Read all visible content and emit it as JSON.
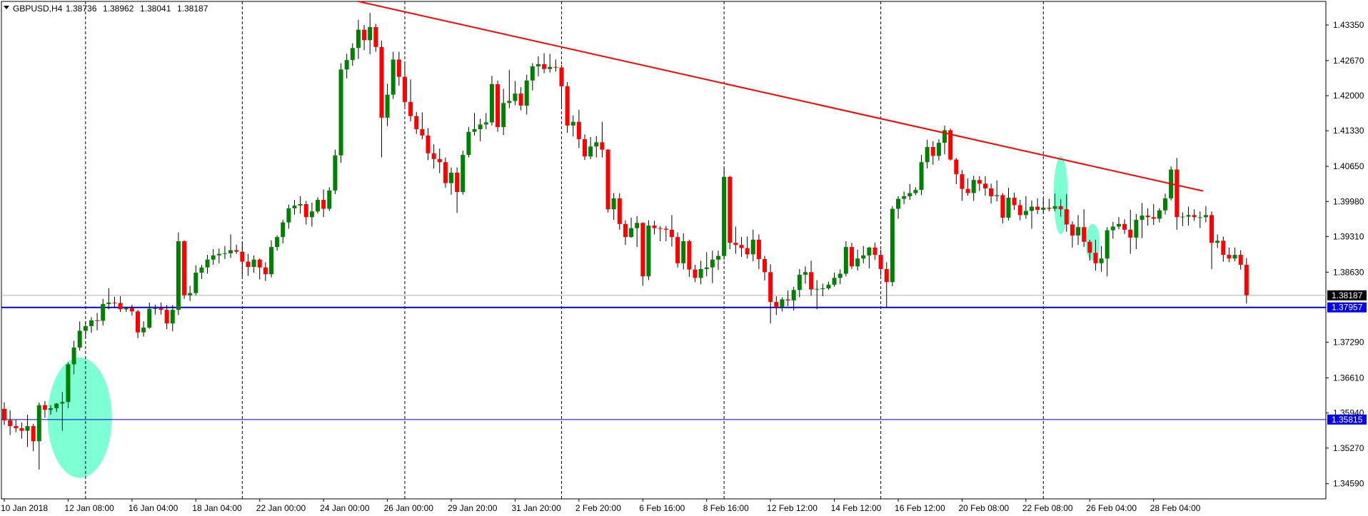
{
  "header": {
    "symbol": "GBPUSD,H4",
    "open": "1.38736",
    "high": "1.38962",
    "low": "1.38041",
    "close": "1.38187"
  },
  "colors": {
    "bull": "#008000",
    "bear": "#ff0000",
    "wick": "#000000",
    "support": "#0000cc",
    "trendline": "#ff0000",
    "highlight": "#7fffd4",
    "vgrid": "#000000",
    "current_bg": "#000000",
    "level_bg": "#0000ff"
  },
  "chart_data": {
    "type": "candlestick",
    "symbol": "GBPUSD",
    "timeframe": "H4",
    "y_range": [
      1.343,
      1.438
    ],
    "y_ticks": [
      "1.43350",
      "1.42670",
      "1.42000",
      "1.41330",
      "1.40650",
      "1.39980",
      "1.39310",
      "1.38630",
      "1.37290",
      "1.36610",
      "1.35940",
      "1.35270",
      "1.34590"
    ],
    "x_labels": [
      "10 Jan 2018",
      "12 Jan 08:00",
      "16 Jan 04:00",
      "18 Jan 04:00",
      "22 Jan 00:00",
      "24 Jan 00:00",
      "26 Jan 00:00",
      "29 Jan 20:00",
      "31 Jan 20:00",
      "2 Feb 20:00",
      "6 Feb 16:00",
      "8 Feb 16:00",
      "12 Feb 12:00",
      "14 Feb 12:00",
      "16 Feb 12:00",
      "20 Feb 08:00",
      "22 Feb 08:00",
      "26 Feb 04:00",
      "28 Feb 04:00"
    ],
    "x_label_bars": [
      0,
      11,
      22,
      33,
      44,
      55,
      66,
      77,
      88,
      99,
      110,
      121,
      132,
      143,
      154,
      165,
      176,
      187,
      198
    ],
    "separator_bars": [
      14,
      41,
      69,
      96,
      124,
      151,
      179
    ],
    "current_price": "1.38187",
    "current_price_value": 1.38187,
    "support_levels": [
      {
        "label": "1.37957",
        "value": 1.37957,
        "style": "thick"
      },
      {
        "label": "1.35815",
        "value": 1.35815,
        "style": "thin"
      }
    ],
    "trendline": {
      "from_bar": 61,
      "from_price": 1.438,
      "to_bar": 206.5,
      "to_price": 1.4018
    },
    "highlights": [
      {
        "bar": 13,
        "price_low": 1.347,
        "price_high": 1.37
      },
      {
        "bar": 182,
        "price_low": 1.3935,
        "price_high": 1.4085
      },
      {
        "bar": 187.5,
        "price_low": 1.3885,
        "price_high": 1.3955
      }
    ],
    "ohlc": [
      [
        1.3602,
        1.3614,
        1.3571,
        1.358
      ],
      [
        1.358,
        1.3599,
        1.3552,
        1.3569
      ],
      [
        1.3569,
        1.3581,
        1.3557,
        1.3565
      ],
      [
        1.3565,
        1.3576,
        1.3545,
        1.356
      ],
      [
        1.356,
        1.3591,
        1.3529,
        1.3569
      ],
      [
        1.3569,
        1.3573,
        1.3521,
        1.354
      ],
      [
        1.354,
        1.3614,
        1.3486,
        1.3609
      ],
      [
        1.3609,
        1.3617,
        1.3585,
        1.36
      ],
      [
        1.36,
        1.3609,
        1.3591,
        1.3603
      ],
      [
        1.3603,
        1.3613,
        1.3596,
        1.3612
      ],
      [
        1.3612,
        1.3634,
        1.356,
        1.3615
      ],
      [
        1.3615,
        1.3691,
        1.3603,
        1.3687
      ],
      [
        1.3687,
        1.3732,
        1.3668,
        1.3719
      ],
      [
        1.3719,
        1.3769,
        1.3713,
        1.3751
      ],
      [
        1.3751,
        1.3768,
        1.3738,
        1.376
      ],
      [
        1.376,
        1.3777,
        1.3747,
        1.3771
      ],
      [
        1.3771,
        1.3785,
        1.3752,
        1.377
      ],
      [
        1.377,
        1.3812,
        1.3761,
        1.3802
      ],
      [
        1.3802,
        1.3832,
        1.3792,
        1.3805
      ],
      [
        1.3805,
        1.3816,
        1.3796,
        1.3804
      ],
      [
        1.3804,
        1.3817,
        1.3787,
        1.3792
      ],
      [
        1.3792,
        1.3797,
        1.3787,
        1.3794
      ],
      [
        1.3794,
        1.3801,
        1.378,
        1.3788
      ],
      [
        1.3788,
        1.3791,
        1.3737,
        1.3748
      ],
      [
        1.3748,
        1.3769,
        1.374,
        1.3757
      ],
      [
        1.3757,
        1.3805,
        1.3755,
        1.3793
      ],
      [
        1.3793,
        1.3801,
        1.3782,
        1.3794
      ],
      [
        1.3794,
        1.3805,
        1.3782,
        1.3791
      ],
      [
        1.3791,
        1.38,
        1.3754,
        1.3765
      ],
      [
        1.3765,
        1.38,
        1.375,
        1.3791
      ],
      [
        1.3791,
        1.3939,
        1.3781,
        1.3922
      ],
      [
        1.3922,
        1.3924,
        1.3812,
        1.3819
      ],
      [
        1.3819,
        1.3837,
        1.3808,
        1.3823
      ],
      [
        1.3823,
        1.3876,
        1.3819,
        1.3862
      ],
      [
        1.3862,
        1.3877,
        1.385,
        1.3872
      ],
      [
        1.3872,
        1.3896,
        1.386,
        1.3887
      ],
      [
        1.3887,
        1.3907,
        1.3877,
        1.3895
      ],
      [
        1.3895,
        1.3908,
        1.388,
        1.3898
      ],
      [
        1.3898,
        1.3913,
        1.3888,
        1.3899
      ],
      [
        1.3899,
        1.3935,
        1.389,
        1.3905
      ],
      [
        1.3905,
        1.3915,
        1.3898,
        1.3902
      ],
      [
        1.3902,
        1.3919,
        1.3855,
        1.3883
      ],
      [
        1.3883,
        1.3898,
        1.3856,
        1.3873
      ],
      [
        1.3873,
        1.3895,
        1.3862,
        1.3887
      ],
      [
        1.3887,
        1.3889,
        1.3849,
        1.3872
      ],
      [
        1.3872,
        1.3882,
        1.3846,
        1.3859
      ],
      [
        1.3859,
        1.3924,
        1.3853,
        1.3911
      ],
      [
        1.3911,
        1.3933,
        1.3904,
        1.393
      ],
      [
        1.393,
        1.3963,
        1.3918,
        1.3958
      ],
      [
        1.3958,
        1.3992,
        1.3946,
        1.3985
      ],
      [
        1.3985,
        1.4001,
        1.3973,
        1.399
      ],
      [
        1.399,
        1.4008,
        1.3975,
        1.3993
      ],
      [
        1.3993,
        1.3999,
        1.3954,
        1.3968
      ],
      [
        1.3968,
        1.3996,
        1.395,
        1.3979
      ],
      [
        1.3979,
        1.4006,
        1.3975,
        1.4001
      ],
      [
        1.4001,
        1.4021,
        1.3968,
        1.3984
      ],
      [
        1.3984,
        1.4025,
        1.398,
        1.4019
      ],
      [
        1.4019,
        1.4097,
        1.4012,
        1.4086
      ],
      [
        1.4086,
        1.4262,
        1.4072,
        1.425
      ],
      [
        1.425,
        1.428,
        1.4233,
        1.4268
      ],
      [
        1.4268,
        1.43,
        1.4257,
        1.4291
      ],
      [
        1.4291,
        1.4345,
        1.427,
        1.4326
      ],
      [
        1.4326,
        1.4335,
        1.4287,
        1.4306
      ],
      [
        1.4306,
        1.4358,
        1.4279,
        1.4331
      ],
      [
        1.4331,
        1.4337,
        1.4284,
        1.4293
      ],
      [
        1.4293,
        1.4305,
        1.4082,
        1.4158
      ],
      [
        1.4158,
        1.4223,
        1.4142,
        1.4202
      ],
      [
        1.4202,
        1.4284,
        1.4194,
        1.4269
      ],
      [
        1.4269,
        1.4284,
        1.4219,
        1.4236
      ],
      [
        1.4236,
        1.4262,
        1.4178,
        1.4188
      ],
      [
        1.4188,
        1.4231,
        1.4151,
        1.4161
      ],
      [
        1.4161,
        1.4169,
        1.4127,
        1.4136
      ],
      [
        1.4136,
        1.4168,
        1.4117,
        1.4124
      ],
      [
        1.4124,
        1.4138,
        1.4077,
        1.409
      ],
      [
        1.409,
        1.4107,
        1.4061,
        1.4079
      ],
      [
        1.4079,
        1.4099,
        1.4052,
        1.4073
      ],
      [
        1.4073,
        1.4082,
        1.4024,
        1.4033
      ],
      [
        1.4033,
        1.4063,
        1.4011,
        1.4053
      ],
      [
        1.4053,
        1.4063,
        1.3976,
        1.4016
      ],
      [
        1.4016,
        1.4095,
        1.4011,
        1.4087
      ],
      [
        1.4087,
        1.414,
        1.4082,
        1.4131
      ],
      [
        1.4131,
        1.4167,
        1.4124,
        1.4136
      ],
      [
        1.4136,
        1.4156,
        1.4113,
        1.4145
      ],
      [
        1.4145,
        1.4167,
        1.4136,
        1.4149
      ],
      [
        1.4149,
        1.4238,
        1.4143,
        1.4222
      ],
      [
        1.4222,
        1.4229,
        1.4131,
        1.414
      ],
      [
        1.414,
        1.4213,
        1.4125,
        1.4186
      ],
      [
        1.4186,
        1.4249,
        1.4176,
        1.419
      ],
      [
        1.419,
        1.4228,
        1.4182,
        1.4204
      ],
      [
        1.4204,
        1.4216,
        1.4172,
        1.4181
      ],
      [
        1.4181,
        1.424,
        1.4164,
        1.4229
      ],
      [
        1.4229,
        1.4262,
        1.421,
        1.4256
      ],
      [
        1.4256,
        1.4275,
        1.4237,
        1.426
      ],
      [
        1.426,
        1.4281,
        1.4243,
        1.4251
      ],
      [
        1.4251,
        1.428,
        1.4244,
        1.4255
      ],
      [
        1.4255,
        1.4269,
        1.4246,
        1.4254
      ],
      [
        1.4254,
        1.4259,
        1.4178,
        1.4218
      ],
      [
        1.4218,
        1.4226,
        1.4129,
        1.4143
      ],
      [
        1.4143,
        1.4162,
        1.4122,
        1.415
      ],
      [
        1.415,
        1.4173,
        1.41,
        1.4117
      ],
      [
        1.4117,
        1.4126,
        1.4077,
        1.4084
      ],
      [
        1.4084,
        1.4121,
        1.4079,
        1.4103
      ],
      [
        1.4103,
        1.4123,
        1.4082,
        1.4111
      ],
      [
        1.4111,
        1.415,
        1.4082,
        1.4097
      ],
      [
        1.4097,
        1.4098,
        1.3977,
        1.3983
      ],
      [
        1.3983,
        1.4014,
        1.3963,
        1.4004
      ],
      [
        1.4004,
        1.4014,
        1.3944,
        1.3955
      ],
      [
        1.3955,
        1.3962,
        1.3915,
        1.393
      ],
      [
        1.393,
        1.3967,
        1.3929,
        1.3947
      ],
      [
        1.3947,
        1.397,
        1.3911,
        1.3957
      ],
      [
        1.3957,
        1.3958,
        1.3837,
        1.3855
      ],
      [
        1.3855,
        1.3962,
        1.3848,
        1.3952
      ],
      [
        1.3952,
        1.3961,
        1.3935,
        1.3947
      ],
      [
        1.3947,
        1.3951,
        1.3922,
        1.3946
      ],
      [
        1.3946,
        1.3951,
        1.3922,
        1.3944
      ],
      [
        1.3944,
        1.3972,
        1.3912,
        1.393
      ],
      [
        1.393,
        1.3939,
        1.3872,
        1.388
      ],
      [
        1.388,
        1.3937,
        1.3868,
        1.3922
      ],
      [
        1.3922,
        1.3925,
        1.3854,
        1.3868
      ],
      [
        1.3868,
        1.3877,
        1.3844,
        1.3852
      ],
      [
        1.3852,
        1.3885,
        1.384,
        1.3869
      ],
      [
        1.3869,
        1.3901,
        1.3855,
        1.3872
      ],
      [
        1.3872,
        1.3904,
        1.3842,
        1.3887
      ],
      [
        1.3887,
        1.3904,
        1.3867,
        1.3894
      ],
      [
        1.3894,
        1.4062,
        1.3887,
        1.4045
      ],
      [
        1.4045,
        1.4047,
        1.3907,
        1.3919
      ],
      [
        1.3919,
        1.395,
        1.3898,
        1.3915
      ],
      [
        1.3915,
        1.393,
        1.3892,
        1.3909
      ],
      [
        1.3909,
        1.3931,
        1.3889,
        1.3897
      ],
      [
        1.3897,
        1.3944,
        1.3884,
        1.3925
      ],
      [
        1.3925,
        1.3935,
        1.3869,
        1.3888
      ],
      [
        1.3888,
        1.3894,
        1.3847,
        1.3863
      ],
      [
        1.3863,
        1.3878,
        1.3765,
        1.3806
      ],
      [
        1.3806,
        1.3817,
        1.3781,
        1.3796
      ],
      [
        1.3796,
        1.3815,
        1.3788,
        1.3811
      ],
      [
        1.3811,
        1.3828,
        1.3798,
        1.3809
      ],
      [
        1.3809,
        1.3835,
        1.379,
        1.3829
      ],
      [
        1.3829,
        1.3869,
        1.3815,
        1.3858
      ],
      [
        1.3858,
        1.3874,
        1.3841,
        1.3863
      ],
      [
        1.3863,
        1.3885,
        1.3818,
        1.383
      ],
      [
        1.383,
        1.3848,
        1.3792,
        1.3831
      ],
      [
        1.3831,
        1.3841,
        1.3817,
        1.3832
      ],
      [
        1.3832,
        1.3845,
        1.3829,
        1.3839
      ],
      [
        1.3839,
        1.3862,
        1.3835,
        1.3852
      ],
      [
        1.3852,
        1.3868,
        1.384,
        1.386
      ],
      [
        1.386,
        1.3922,
        1.3855,
        1.3911
      ],
      [
        1.3911,
        1.3919,
        1.3869,
        1.3874
      ],
      [
        1.3874,
        1.3906,
        1.3866,
        1.3889
      ],
      [
        1.3889,
        1.3913,
        1.388,
        1.3895
      ],
      [
        1.3895,
        1.3911,
        1.387,
        1.391
      ],
      [
        1.391,
        1.3919,
        1.3887,
        1.3896
      ],
      [
        1.3896,
        1.3906,
        1.3856,
        1.3869
      ],
      [
        1.3869,
        1.3882,
        1.3795,
        1.3844
      ],
      [
        1.3844,
        1.3989,
        1.3836,
        1.3984
      ],
      [
        1.3984,
        1.4008,
        1.3965,
        1.4003
      ],
      [
        1.4003,
        1.4017,
        1.3993,
        1.4008
      ],
      [
        1.4008,
        1.4031,
        1.4001,
        1.4014
      ],
      [
        1.4014,
        1.4025,
        1.401,
        1.402
      ],
      [
        1.402,
        1.4087,
        1.401,
        1.4073
      ],
      [
        1.4073,
        1.4116,
        1.4061,
        1.4102
      ],
      [
        1.4102,
        1.4113,
        1.4068,
        1.4085
      ],
      [
        1.4085,
        1.4117,
        1.4076,
        1.411
      ],
      [
        1.411,
        1.4143,
        1.4088,
        1.4134
      ],
      [
        1.4134,
        1.4137,
        1.4076,
        1.4078
      ],
      [
        1.4078,
        1.4081,
        1.4031,
        1.405
      ],
      [
        1.405,
        1.4058,
        1.3999,
        1.4022
      ],
      [
        1.4022,
        1.4042,
        1.4009,
        1.4014
      ],
      [
        1.4014,
        1.4047,
        1.3999,
        1.4039
      ],
      [
        1.4039,
        1.4046,
        1.4018,
        1.4032
      ],
      [
        1.4032,
        1.4046,
        1.4009,
        1.4023
      ],
      [
        1.4023,
        1.4032,
        1.3994,
        1.4008
      ],
      [
        1.4008,
        1.4038,
        1.3998,
        1.401
      ],
      [
        1.401,
        1.4014,
        1.3956,
        1.3967
      ],
      [
        1.3967,
        1.4024,
        1.3962,
        1.4005
      ],
      [
        1.4005,
        1.4015,
        1.3982,
        1.3991
      ],
      [
        1.3991,
        1.4001,
        1.3962,
        1.3972
      ],
      [
        1.3972,
        1.4008,
        1.3965,
        1.398
      ],
      [
        1.398,
        1.4,
        1.3946,
        1.3988
      ],
      [
        1.3988,
        1.4004,
        1.3974,
        1.3982
      ],
      [
        1.3982,
        1.4004,
        1.3975,
        1.3986
      ],
      [
        1.3986,
        1.4003,
        1.3979,
        1.3984
      ],
      [
        1.3984,
        1.4013,
        1.3979,
        1.3989
      ],
      [
        1.3989,
        1.4002,
        1.3969,
        1.3983
      ],
      [
        1.3983,
        1.4012,
        1.394,
        1.3954
      ],
      [
        1.3954,
        1.396,
        1.391,
        1.3933
      ],
      [
        1.3933,
        1.3972,
        1.3915,
        1.3949
      ],
      [
        1.3949,
        1.3983,
        1.3911,
        1.3921
      ],
      [
        1.3921,
        1.3925,
        1.3885,
        1.39
      ],
      [
        1.39,
        1.3925,
        1.3866,
        1.388
      ],
      [
        1.388,
        1.3913,
        1.3864,
        1.3889
      ],
      [
        1.3889,
        1.3949,
        1.3855,
        1.3943
      ],
      [
        1.3943,
        1.3959,
        1.3927,
        1.395
      ],
      [
        1.395,
        1.3968,
        1.3945,
        1.3955
      ],
      [
        1.3955,
        1.3964,
        1.3936,
        1.3944
      ],
      [
        1.3944,
        1.3982,
        1.3898,
        1.3929
      ],
      [
        1.3929,
        1.3974,
        1.3907,
        1.3963
      ],
      [
        1.3963,
        1.3995,
        1.3928,
        1.3971
      ],
      [
        1.3971,
        1.3985,
        1.3952,
        1.3968
      ],
      [
        1.3968,
        1.3993,
        1.3953,
        1.3965
      ],
      [
        1.3965,
        1.3985,
        1.3958,
        1.3981
      ],
      [
        1.3981,
        1.4013,
        1.3973,
        1.4004
      ],
      [
        1.4004,
        1.4065,
        1.4,
        1.4059
      ],
      [
        1.4059,
        1.4081,
        1.3944,
        1.3968
      ],
      [
        1.3968,
        1.3977,
        1.3951,
        1.3969
      ],
      [
        1.3969,
        1.3988,
        1.3952,
        1.3972
      ],
      [
        1.3972,
        1.3983,
        1.3961,
        1.3968
      ],
      [
        1.3968,
        1.3979,
        1.3947,
        1.3968
      ],
      [
        1.3968,
        1.3989,
        1.3958,
        1.3972
      ],
      [
        1.3972,
        1.3979,
        1.3869,
        1.3919
      ],
      [
        1.3919,
        1.3935,
        1.3909,
        1.3923
      ],
      [
        1.3923,
        1.3931,
        1.3883,
        1.3896
      ],
      [
        1.3896,
        1.391,
        1.3882,
        1.3889
      ],
      [
        1.3889,
        1.391,
        1.3884,
        1.3896
      ],
      [
        1.3896,
        1.3905,
        1.3868,
        1.3877
      ],
      [
        1.3877,
        1.389,
        1.3803,
        1.3819
      ]
    ]
  }
}
